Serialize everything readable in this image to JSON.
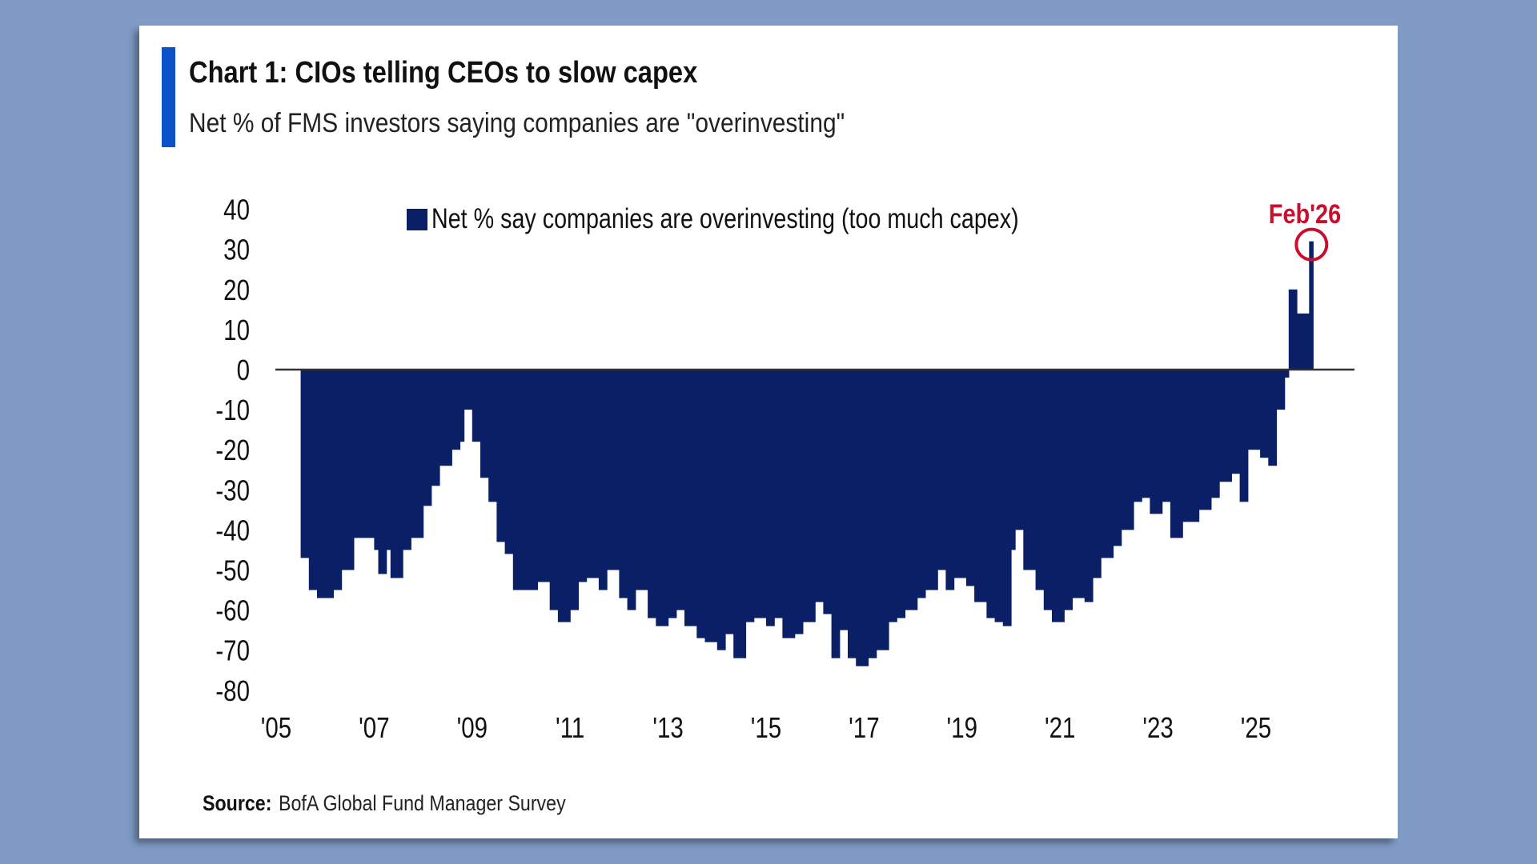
{
  "title": "Chart 1: CIOs telling CEOs to slow capex",
  "subtitle": "Net % of FMS investors saying companies are \"overinvesting\"",
  "source_label": "Source:",
  "source_text": "BofA Global Fund Manager Survey",
  "colors": {
    "background": "#7f9bc6",
    "accent_bar": "#0b52c9",
    "series": "#0a1f66",
    "annotation": "#c8102e",
    "zero_line": "#333333"
  },
  "chart_data": {
    "type": "bar",
    "title": "Chart 1: CIOs telling CEOs to slow capex",
    "subtitle": "Net % of FMS investors saying companies are \"overinvesting\"",
    "xlabel": "",
    "ylabel": "",
    "ylim": [
      -80,
      40
    ],
    "xlim": [
      "2005-01",
      "2027-01"
    ],
    "yticks": [
      "40",
      "30",
      "20",
      "10",
      "0",
      "-10",
      "-20",
      "-30",
      "-40",
      "-50",
      "-60",
      "-70",
      "-80"
    ],
    "xticks": [
      "'05",
      "'07",
      "'09",
      "'11",
      "'13",
      "'15",
      "'17",
      "'19",
      "'21",
      "'23",
      "'25"
    ],
    "grid": false,
    "legend": "top-center",
    "annotation": {
      "label": "Feb'26",
      "date": "2026-02",
      "value": 32
    },
    "series": [
      {
        "name": "Net % say companies are overinvesting (too much capex)",
        "x": [
          "2005-07",
          "2005-09",
          "2005-11",
          "2006-03",
          "2006-05",
          "2006-08",
          "2006-11",
          "2007-01",
          "2007-02",
          "2007-04",
          "2007-05",
          "2007-08",
          "2007-10",
          "2008-01",
          "2008-03",
          "2008-05",
          "2008-08",
          "2008-10",
          "2008-11",
          "2009-01",
          "2009-03",
          "2009-05",
          "2009-07",
          "2009-09",
          "2009-11",
          "2010-03",
          "2010-05",
          "2010-08",
          "2010-10",
          "2011-01",
          "2011-03",
          "2011-05",
          "2011-08",
          "2011-10",
          "2012-01",
          "2012-03",
          "2012-05",
          "2012-08",
          "2012-10",
          "2013-01",
          "2013-03",
          "2013-05",
          "2013-08",
          "2013-10",
          "2014-01",
          "2014-03",
          "2014-05",
          "2014-08",
          "2014-10",
          "2015-01",
          "2015-03",
          "2015-05",
          "2015-08",
          "2015-10",
          "2016-01",
          "2016-03",
          "2016-05",
          "2016-07",
          "2016-09",
          "2016-11",
          "2017-02",
          "2017-04",
          "2017-07",
          "2017-09",
          "2017-11",
          "2018-02",
          "2018-04",
          "2018-07",
          "2018-09",
          "2018-11",
          "2019-02",
          "2019-04",
          "2019-07",
          "2019-09",
          "2019-11",
          "2020-01",
          "2020-02",
          "2020-04",
          "2020-07",
          "2020-09",
          "2020-11",
          "2021-02",
          "2021-04",
          "2021-07",
          "2021-09",
          "2021-11",
          "2022-02",
          "2022-04",
          "2022-07",
          "2022-09",
          "2022-11",
          "2023-02",
          "2023-04",
          "2023-07",
          "2023-09",
          "2023-11",
          "2024-02",
          "2024-04",
          "2024-07",
          "2024-09",
          "2024-11",
          "2025-02",
          "2025-04",
          "2025-06",
          "2025-08",
          "2025-09",
          "2025-11",
          "2026-02"
        ],
        "values": [
          -47,
          -55,
          -57,
          -55,
          -50,
          -42,
          -42,
          -45,
          -51,
          -45,
          -52,
          -45,
          -42,
          -34,
          -29,
          -24,
          -20,
          -18,
          -10,
          -18,
          -27,
          -33,
          -43,
          -46,
          -55,
          -55,
          -53,
          -60,
          -63,
          -60,
          -53,
          -52,
          -55,
          -50,
          -57,
          -60,
          -55,
          -62,
          -64,
          -62,
          -60,
          -64,
          -67,
          -68,
          -70,
          -66,
          -72,
          -63,
          -62,
          -64,
          -62,
          -67,
          -66,
          -63,
          -58,
          -61,
          -72,
          -65,
          -72,
          -74,
          -72,
          -70,
          -63,
          -62,
          -60,
          -57,
          -55,
          -50,
          -55,
          -52,
          -54,
          -58,
          -62,
          -63,
          -64,
          -45,
          -40,
          -50,
          -55,
          -60,
          -63,
          -60,
          -57,
          -58,
          -52,
          -47,
          -44,
          -40,
          -33,
          -32,
          -36,
          -33,
          -42,
          -38,
          -38,
          -35,
          -32,
          -28,
          -26,
          -33,
          -20,
          -22,
          -24,
          -10,
          -2,
          20,
          14,
          32
        ]
      }
    ]
  }
}
